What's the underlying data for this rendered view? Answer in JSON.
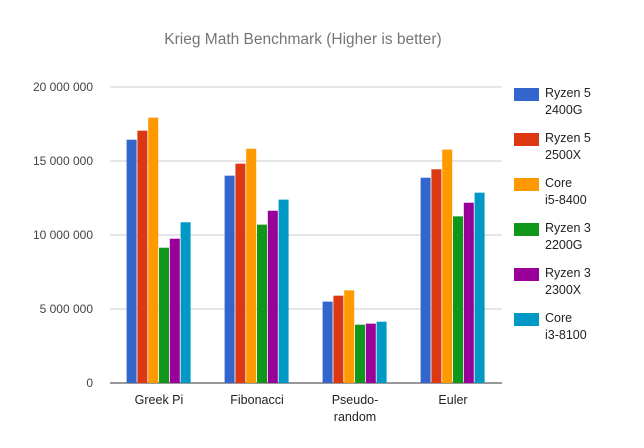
{
  "chart_data": {
    "type": "bar",
    "title": "Krieg Math Benchmark (Higher is better)",
    "categories": [
      [
        "Greek Pi"
      ],
      [
        "Fibonacci"
      ],
      [
        "Pseudo-",
        "random"
      ],
      [
        "Euler"
      ]
    ],
    "ylim": [
      0,
      20000000
    ],
    "yticks": [
      "0",
      "5 000 000",
      "10 000 000",
      "15 000 000",
      "20 000 000"
    ],
    "ytick_values": [
      0,
      5000000,
      10000000,
      15000000,
      20000000
    ],
    "grid": true,
    "legend_position": "right",
    "series": [
      {
        "name": [
          "Ryzen 5",
          "2400G"
        ],
        "color": "#3366cc",
        "values": [
          16440000,
          14010000,
          5500000,
          13870000
        ]
      },
      {
        "name": [
          "Ryzen 5",
          "2500X"
        ],
        "color": "#dc3912",
        "values": [
          17050000,
          14820000,
          5900000,
          14440000
        ]
      },
      {
        "name": [
          "Core",
          "i5-8400"
        ],
        "color": "#ff9900",
        "values": [
          17930000,
          15830000,
          6260000,
          15770000
        ]
      },
      {
        "name": [
          "Ryzen 3",
          "2200G"
        ],
        "color": "#109618",
        "values": [
          9140000,
          10700000,
          3940000,
          11260000
        ]
      },
      {
        "name": [
          "Ryzen 3",
          "2300X"
        ],
        "color": "#990099",
        "values": [
          9750000,
          11640000,
          4010000,
          12180000
        ]
      },
      {
        "name": [
          "Core",
          "i3-8100"
        ],
        "color": "#0099c6",
        "values": [
          10860000,
          12390000,
          4140000,
          12860000
        ]
      }
    ]
  }
}
